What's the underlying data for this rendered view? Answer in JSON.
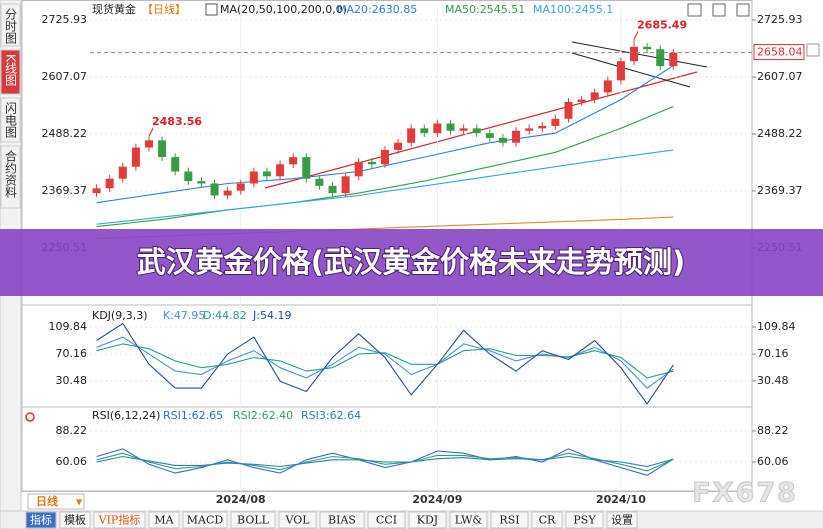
{
  "sidebar": {
    "tabs": [
      "分时图",
      "K线图",
      "闪电图",
      "合约资料"
    ],
    "active": 1
  },
  "toolbar": {
    "period": "日线",
    "tabs": [
      "指标",
      "模板",
      "VIP指标",
      "MA",
      "MACD",
      "BOLL",
      "VOL",
      "BIAS",
      "CCI",
      "KDJ",
      "LW&",
      "RSI",
      "CR",
      "PSY",
      "设置"
    ],
    "active": 0
  },
  "banner": "武汉黄金价格(武汉黄金价格未来走势预测)",
  "watermark": "FX678",
  "chart_data": [
    {
      "type": "candlestick",
      "title": "现货黄金",
      "period": "【日线】",
      "indicator": "MA(20,50,100,200,0,0)",
      "up_color": "#e23b3b",
      "down_color": "#3a9b47",
      "candles": {
        "open": [
          2365,
          2375,
          2395,
          2420,
          2460,
          2475,
          2440,
          2410,
          2390,
          2385,
          2360,
          2370,
          2385,
          2410,
          2400,
          2425,
          2440,
          2395,
          2380,
          2365,
          2400,
          2430,
          2425,
          2455,
          2470,
          2500,
          2490,
          2510,
          2495,
          2500,
          2490,
          2480,
          2470,
          2495,
          2500,
          2505,
          2520,
          2555,
          2560,
          2575,
          2600,
          2640,
          2670,
          2665,
          2630
        ],
        "high": [
          2383,
          2403,
          2428,
          2468,
          2483.56,
          2483,
          2448,
          2418,
          2398,
          2393,
          2378,
          2393,
          2418,
          2418,
          2433,
          2448,
          2448,
          2403,
          2388,
          2408,
          2438,
          2438,
          2463,
          2478,
          2508,
          2508,
          2518,
          2518,
          2508,
          2508,
          2498,
          2488,
          2503,
          2508,
          2513,
          2528,
          2563,
          2568,
          2583,
          2608,
          2648,
          2685.49,
          2678,
          2673,
          2666
        ],
        "low": [
          2357,
          2367,
          2387,
          2412,
          2452,
          2432,
          2402,
          2382,
          2377,
          2352,
          2352,
          2362,
          2377,
          2392,
          2392,
          2417,
          2387,
          2372,
          2357,
          2357,
          2392,
          2417,
          2417,
          2447,
          2462,
          2482,
          2482,
          2487,
          2487,
          2482,
          2472,
          2462,
          2462,
          2487,
          2492,
          2497,
          2512,
          2547,
          2552,
          2567,
          2592,
          2632,
          2657,
          2622,
          2622
        ],
        "close": [
          2375,
          2395,
          2420,
          2460,
          2475,
          2440,
          2410,
          2390,
          2385,
          2360,
          2370,
          2385,
          2410,
          2400,
          2425,
          2440,
          2395,
          2380,
          2365,
          2400,
          2430,
          2425,
          2455,
          2470,
          2500,
          2490,
          2510,
          2495,
          2500,
          2490,
          2480,
          2470,
          2495,
          2500,
          2505,
          2520,
          2555,
          2560,
          2575,
          2600,
          2640,
          2670,
          2665,
          2630,
          2658.04
        ]
      },
      "series": [
        {
          "label": "MA20:2630.85",
          "color": "#2f7fd0",
          "x": [
            0,
            5,
            10,
            15,
            20,
            25,
            30,
            35,
            40,
            44
          ],
          "values": [
            2345,
            2365,
            2385,
            2395,
            2410,
            2440,
            2470,
            2490,
            2560,
            2630.85
          ]
        },
        {
          "label": "MA50:2545.51",
          "color": "#2fa04a",
          "x": [
            0,
            5,
            10,
            15,
            20,
            25,
            30,
            35,
            40,
            44
          ],
          "values": [
            2295,
            2310,
            2330,
            2345,
            2365,
            2390,
            2420,
            2450,
            2500,
            2545.51
          ]
        },
        {
          "label": "MA100:2455.1",
          "color": "#36a8d8",
          "x": [
            0,
            5,
            10,
            15,
            20,
            25,
            30,
            35,
            40,
            44
          ],
          "values": [
            2300,
            2315,
            2330,
            2345,
            2360,
            2380,
            2400,
            2420,
            2440,
            2455.1
          ]
        },
        {
          "color": "#e08a2a",
          "x": [
            0,
            5,
            10,
            15,
            20,
            25,
            30,
            35,
            40,
            44
          ],
          "values": [
            2270,
            2275,
            2280,
            2285,
            2290,
            2295,
            2300,
            2305,
            2310,
            2315
          ]
        }
      ],
      "xlim": [
        -0.5,
        50
      ],
      "ylim": [
        2142,
        2751
      ],
      "yticks": [
        2250.51,
        2369.37,
        2488.22,
        2607.07,
        2725.93
      ],
      "xticks": [
        {
          "value": 11,
          "label": "2024/08"
        },
        {
          "value": 26,
          "label": "2024/09"
        },
        {
          "value": 40,
          "label": "2024/10"
        }
      ],
      "grid": true
    },
    {
      "type": "line",
      "title": "KDJ(9,3,3)",
      "xlim": [
        -0.5,
        50
      ],
      "ylim": [
        -4.8,
        134.8
      ],
      "yticks": [
        30.48,
        70.16,
        109.84
      ],
      "grid": true,
      "series": [
        {
          "label": "K:47.95",
          "color": "#4a90d9",
          "x": [
            0,
            2,
            4,
            6,
            8,
            10,
            12,
            14,
            16,
            18,
            20,
            22,
            24,
            26,
            28,
            30,
            32,
            34,
            36,
            38,
            40,
            42,
            44
          ],
          "values": [
            80,
            95,
            70,
            45,
            40,
            60,
            75,
            50,
            35,
            55,
            80,
            70,
            40,
            55,
            85,
            75,
            60,
            70,
            65,
            80,
            60,
            20,
            47.95
          ]
        },
        {
          "label": "D:44.82",
          "color": "#2a9d8f",
          "x": [
            0,
            2,
            4,
            6,
            8,
            10,
            12,
            14,
            16,
            18,
            20,
            22,
            24,
            26,
            28,
            30,
            32,
            34,
            36,
            38,
            40,
            42,
            44
          ],
          "values": [
            75,
            85,
            78,
            60,
            50,
            55,
            65,
            60,
            45,
            50,
            70,
            72,
            55,
            55,
            75,
            78,
            68,
            68,
            66,
            75,
            65,
            35,
            44.82
          ]
        },
        {
          "label": "J:54.19",
          "color": "#1f4fa0",
          "x": [
            0,
            2,
            4,
            6,
            8,
            10,
            12,
            14,
            16,
            18,
            20,
            22,
            24,
            26,
            28,
            30,
            32,
            34,
            36,
            38,
            40,
            42,
            44
          ],
          "values": [
            90,
            115,
            55,
            20,
            20,
            70,
            95,
            30,
            15,
            65,
            100,
            65,
            10,
            55,
            105,
            70,
            45,
            75,
            62,
            90,
            50,
            -3,
            54.19
          ]
        }
      ]
    },
    {
      "type": "line",
      "title": "RSI(6,12,24)",
      "xlim": [
        -0.5,
        50
      ],
      "ylim": [
        34.6,
        107.3
      ],
      "yticks": [
        60.06,
        88.22
      ],
      "grid": true,
      "series": [
        {
          "label": "RSI1:62.65",
          "color": "#2a6fd0",
          "x": [
            0,
            2,
            4,
            6,
            8,
            10,
            12,
            14,
            16,
            18,
            20,
            22,
            24,
            26,
            28,
            30,
            32,
            34,
            36,
            38,
            40,
            42,
            44
          ],
          "values": [
            65,
            72,
            58,
            50,
            55,
            62,
            55,
            50,
            62,
            68,
            62,
            55,
            60,
            70,
            68,
            62,
            65,
            60,
            72,
            62,
            55,
            48,
            62.65
          ]
        },
        {
          "label": "RSI2:62.40",
          "color": "#3aa060",
          "x": [
            0,
            2,
            4,
            6,
            8,
            10,
            12,
            14,
            16,
            18,
            20,
            22,
            24,
            26,
            28,
            30,
            32,
            34,
            36,
            38,
            40,
            42,
            44
          ],
          "values": [
            62,
            68,
            60,
            54,
            56,
            60,
            57,
            53,
            60,
            65,
            63,
            58,
            60,
            66,
            66,
            63,
            64,
            62,
            68,
            63,
            58,
            52,
            62.4
          ]
        },
        {
          "label": "RSI3:62.64",
          "color": "#2a80c0",
          "x": [
            0,
            2,
            4,
            6,
            8,
            10,
            12,
            14,
            16,
            18,
            20,
            22,
            24,
            26,
            28,
            30,
            32,
            34,
            36,
            38,
            40,
            42,
            44
          ],
          "values": [
            60,
            65,
            61,
            57,
            57,
            59,
            58,
            56,
            59,
            62,
            62,
            60,
            60,
            63,
            64,
            62,
            63,
            62,
            65,
            62,
            60,
            56,
            62.64
          ]
        }
      ]
    }
  ]
}
